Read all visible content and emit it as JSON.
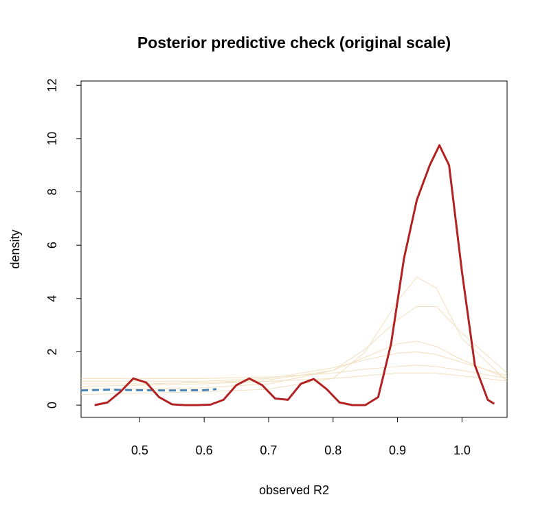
{
  "chart_data": {
    "type": "line",
    "title": "Posterior predictive check (original scale)",
    "xlabel": "observed R2",
    "ylabel": "density",
    "xlim": [
      0.409,
      1.07
    ],
    "ylim": [
      -0.46,
      12.16
    ],
    "xticks": [
      0.5,
      0.6,
      0.7,
      0.8,
      0.9,
      {
        "value": 1,
        "label": "1.0"
      }
    ],
    "yticks": [
      0,
      2,
      4,
      6,
      8,
      10,
      12
    ],
    "grid": false,
    "series": [
      {
        "color": "#f2dfbd",
        "width": 1,
        "dashed": false,
        "x": [
          0.409,
          0.5,
          0.6,
          0.7,
          0.8,
          0.85,
          0.9,
          0.93,
          0.96,
          1.0,
          1.07
        ],
        "values": [
          0.4,
          0.45,
          0.5,
          0.6,
          1.0,
          2.0,
          3.9,
          4.8,
          4.4,
          2.5,
          0.9
        ]
      },
      {
        "color": "#f2dfbd",
        "width": 1,
        "dashed": false,
        "x": [
          0.409,
          0.5,
          0.6,
          0.7,
          0.8,
          0.85,
          0.9,
          0.93,
          0.96,
          1.0,
          1.07
        ],
        "values": [
          0.6,
          0.6,
          0.65,
          0.8,
          1.3,
          2.1,
          3.2,
          3.7,
          3.7,
          2.7,
          1.2
        ]
      },
      {
        "color": "#f2dfbd",
        "width": 1,
        "dashed": false,
        "x": [
          0.409,
          0.5,
          0.6,
          0.7,
          0.8,
          0.85,
          0.9,
          0.93,
          0.96,
          1.0,
          1.07
        ],
        "values": [
          0.8,
          0.8,
          0.85,
          0.95,
          1.3,
          1.8,
          2.3,
          2.4,
          2.2,
          1.7,
          1.0
        ]
      },
      {
        "color": "#f2dfbd",
        "width": 1,
        "dashed": false,
        "x": [
          0.409,
          0.5,
          0.6,
          0.7,
          0.8,
          0.85,
          0.9,
          0.93,
          0.96,
          1.0,
          1.07
        ],
        "values": [
          0.9,
          0.9,
          0.9,
          1.0,
          1.4,
          1.7,
          1.95,
          2.0,
          1.9,
          1.6,
          1.1
        ]
      },
      {
        "color": "#f2dfbd",
        "width": 1,
        "dashed": false,
        "x": [
          0.409,
          0.5,
          0.6,
          0.7,
          0.8,
          0.85,
          0.9,
          0.93,
          0.96,
          1.0,
          1.07
        ],
        "values": [
          1.0,
          1.0,
          1.0,
          1.05,
          1.2,
          1.35,
          1.45,
          1.5,
          1.45,
          1.3,
          1.0
        ]
      },
      {
        "color": "#f2dfbd",
        "width": 1,
        "dashed": false,
        "x": [
          0.409,
          0.5,
          0.6,
          0.7,
          0.8,
          0.85,
          0.9,
          0.93,
          0.96,
          1.0,
          1.07
        ],
        "values": [
          0.7,
          0.75,
          0.8,
          0.9,
          1.0,
          1.1,
          1.2,
          1.2,
          1.2,
          1.1,
          0.9
        ]
      },
      {
        "color": "#4682b4",
        "width": 3,
        "dashed": true,
        "x": [
          0.409,
          0.45,
          0.5,
          0.55,
          0.6,
          0.619
        ],
        "values": [
          0.55,
          0.58,
          0.56,
          0.55,
          0.56,
          0.6
        ]
      },
      {
        "color": "#b22222",
        "width": 3,
        "dashed": false,
        "x": [
          0.43,
          0.45,
          0.47,
          0.49,
          0.51,
          0.53,
          0.55,
          0.57,
          0.59,
          0.61,
          0.63,
          0.65,
          0.67,
          0.69,
          0.71,
          0.73,
          0.75,
          0.77,
          0.79,
          0.81,
          0.83,
          0.85,
          0.87,
          0.89,
          0.91,
          0.93,
          0.95,
          0.965,
          0.98,
          1.0,
          1.02,
          1.04,
          1.05
        ],
        "values": [
          0.0,
          0.1,
          0.5,
          1.0,
          0.85,
          0.3,
          0.03,
          0,
          0,
          0.02,
          0.2,
          0.75,
          1.0,
          0.75,
          0.25,
          0.2,
          0.8,
          0.98,
          0.6,
          0.1,
          0,
          0,
          0.3,
          2.3,
          5.5,
          7.7,
          9.0,
          9.75,
          9.0,
          5.0,
          1.5,
          0.2,
          0.05
        ]
      }
    ]
  }
}
